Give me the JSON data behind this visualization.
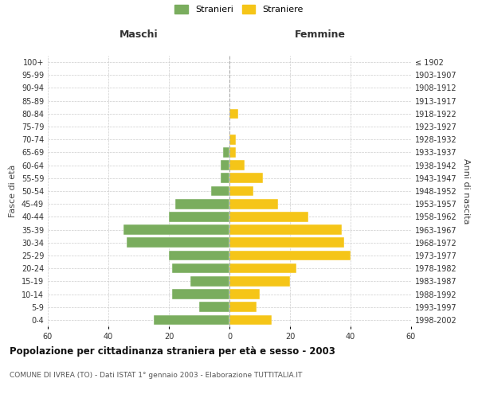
{
  "age_groups": [
    "0-4",
    "5-9",
    "10-14",
    "15-19",
    "20-24",
    "25-29",
    "30-34",
    "35-39",
    "40-44",
    "45-49",
    "50-54",
    "55-59",
    "60-64",
    "65-69",
    "70-74",
    "75-79",
    "80-84",
    "85-89",
    "90-94",
    "95-99",
    "100+"
  ],
  "birth_years": [
    "1998-2002",
    "1993-1997",
    "1988-1992",
    "1983-1987",
    "1978-1982",
    "1973-1977",
    "1968-1972",
    "1963-1967",
    "1958-1962",
    "1953-1957",
    "1948-1952",
    "1943-1947",
    "1938-1942",
    "1933-1937",
    "1928-1932",
    "1923-1927",
    "1918-1922",
    "1913-1917",
    "1908-1912",
    "1903-1907",
    "≤ 1902"
  ],
  "males": [
    25,
    10,
    19,
    13,
    19,
    20,
    34,
    35,
    20,
    18,
    6,
    3,
    3,
    2,
    0,
    0,
    0,
    0,
    0,
    0,
    0
  ],
  "females": [
    14,
    9,
    10,
    20,
    22,
    40,
    38,
    37,
    26,
    16,
    8,
    11,
    5,
    2,
    2,
    0,
    3,
    0,
    0,
    0,
    0
  ],
  "male_color": "#7aad5e",
  "female_color": "#f5c518",
  "title": "Popolazione per cittadinanza straniera per età e sesso - 2003",
  "subtitle": "COMUNE DI IVREA (TO) - Dati ISTAT 1° gennaio 2003 - Elaborazione TUTTITALIA.IT",
  "xlabel_left": "Maschi",
  "xlabel_right": "Femmine",
  "ylabel_left": "Fasce di età",
  "ylabel_right": "Anni di nascita",
  "legend_male": "Stranieri",
  "legend_female": "Straniere",
  "xlim": 60,
  "background_color": "#ffffff",
  "grid_color": "#cccccc"
}
